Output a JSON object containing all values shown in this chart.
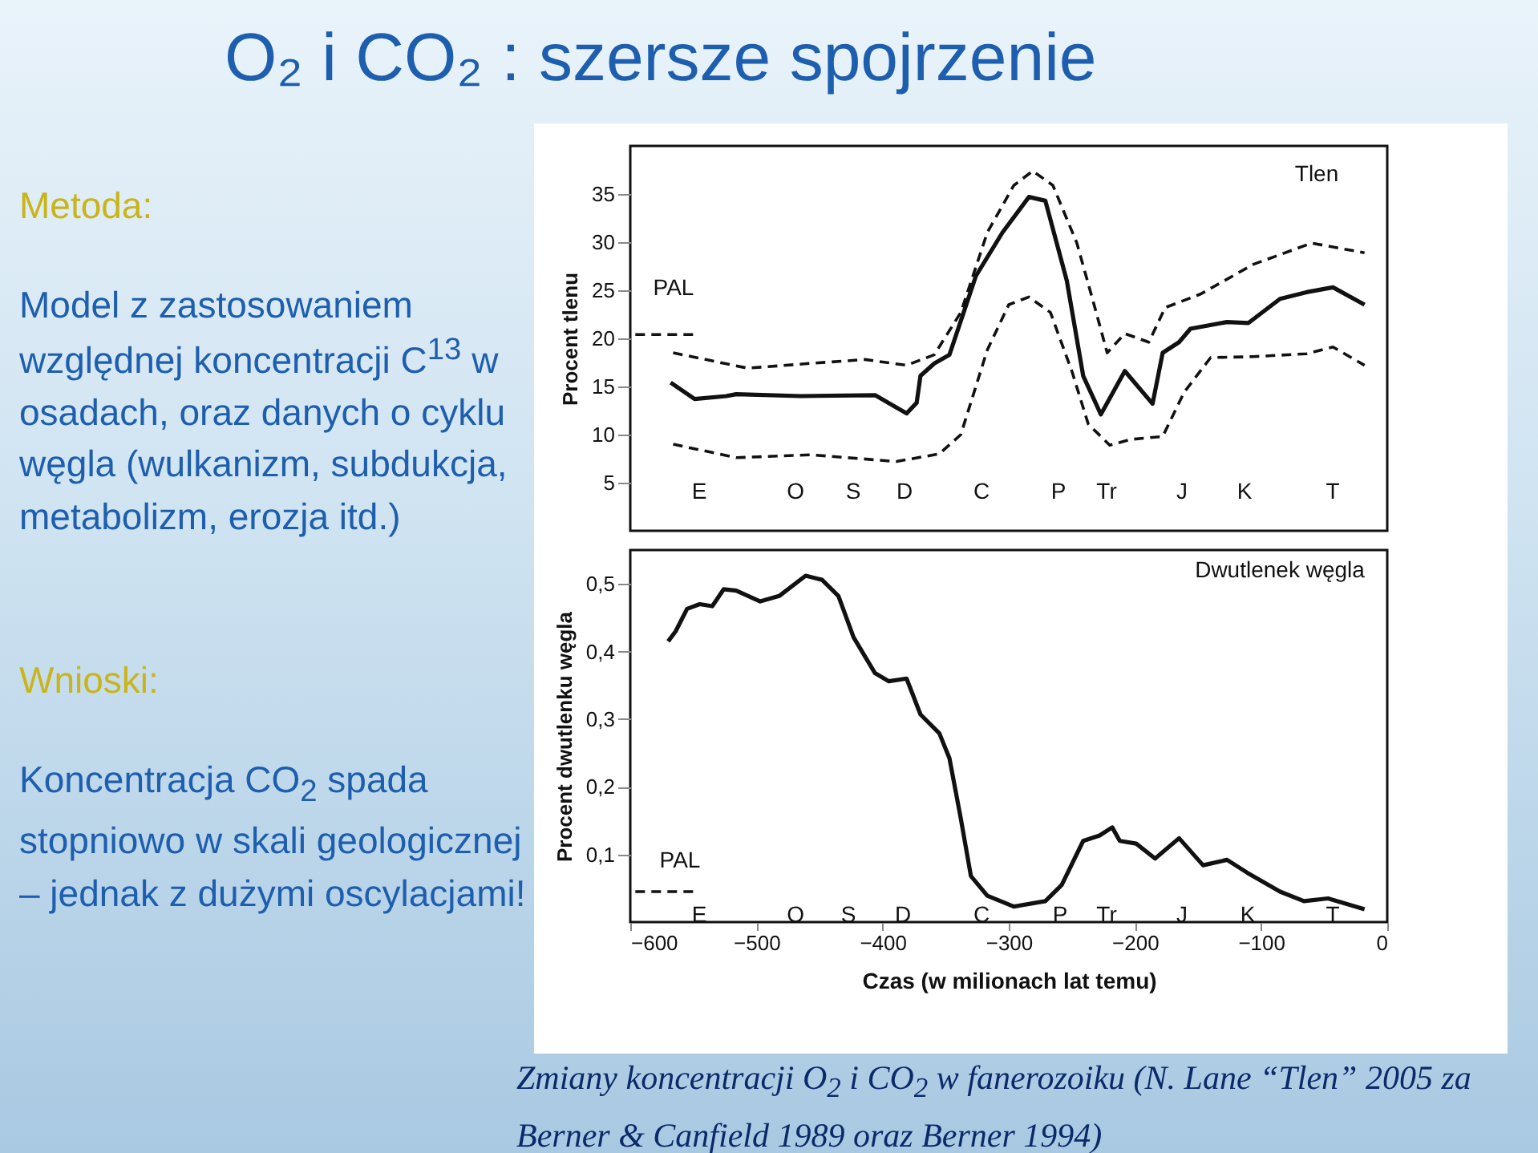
{
  "chart_data": [
    {
      "type": "line",
      "title": "O₂ i CO₂ : szersze spojrzenie",
      "ylabel": "Procent tlenu",
      "xlim": [
        -600,
        0
      ],
      "ylim": [
        0,
        40
      ],
      "yticks": [
        5,
        10,
        15,
        20,
        25,
        30,
        35
      ],
      "tick_labels": "y",
      "grid": false,
      "series": [
        {
          "color": "#111111",
          "line_style": "solid",
          "x": [
            -568,
            -549,
            -524,
            -516,
            -465,
            -406,
            -381,
            -373,
            -370,
            -359,
            -347,
            -326,
            -305,
            -284,
            -271,
            -254,
            -241,
            -227,
            -208,
            -186,
            -178,
            -165,
            -156,
            -127,
            -110,
            -85,
            -64,
            -43,
            -18
          ],
          "values": [
            15.4,
            13.7,
            14.0,
            14.2,
            14.0,
            14.1,
            12.2,
            13.3,
            16.1,
            17.4,
            18.3,
            26.5,
            31.0,
            34.7,
            34.3,
            26.0,
            16.1,
            12.1,
            16.6,
            13.2,
            18.5,
            19.6,
            21.0,
            21.7,
            21.6,
            24.1,
            24.8,
            25.3,
            23.5
          ]
        },
        {
          "color": "#111111",
          "line_style": "dashed",
          "x": [
            -566,
            -507,
            -457,
            -414,
            -381,
            -359,
            -338,
            -317,
            -296,
            -281,
            -265,
            -246,
            -233,
            -222,
            -208,
            -189,
            -176,
            -148,
            -106,
            -60,
            -18
          ],
          "values": [
            18.5,
            16.9,
            17.4,
            17.8,
            17.2,
            18.3,
            22.7,
            31.0,
            35.9,
            37.4,
            35.9,
            29.9,
            23.8,
            18.5,
            20.5,
            19.6,
            23.2,
            24.6,
            27.7,
            29.9,
            28.9
          ]
        },
        {
          "color": "#111111",
          "line_style": "dashed",
          "x": [
            -566,
            -516,
            -457,
            -389,
            -355,
            -338,
            -317,
            -300,
            -284,
            -267,
            -250,
            -237,
            -220,
            -203,
            -178,
            -161,
            -140,
            -106,
            -64,
            -43,
            -18
          ],
          "values": [
            9.0,
            7.6,
            7.9,
            7.2,
            8.0,
            10.0,
            18.8,
            23.5,
            24.3,
            22.7,
            16.6,
            11.1,
            8.9,
            9.5,
            9.8,
            14.4,
            18.0,
            18.1,
            18.4,
            19.1,
            17.2
          ]
        },
        {
          "color": "#111111",
          "line_style": "dashed",
          "x": [
            -596,
            -549
          ],
          "values": [
            20.4,
            20.4
          ]
        }
      ],
      "annotations": [
        "Metoda:",
        "Model z zastosowaniem względnej koncentracji C$^{13}$ w osadach, oraz danych o cyklu węgla (wulkanizm, subdukcja, metabolizm, erozja itd.)",
        "Wnioski:",
        "Koncentracja CO$_{2}$ spada stopniowo w skali geologicznej – jednak z dużymi oscylacjami!",
        "Tlen",
        "PAL",
        "E",
        "O",
        "S",
        "D",
        "C",
        "P",
        "Tr",
        "J",
        "K",
        "T"
      ]
    },
    {
      "type": "line",
      "ylabel": "Procent dwutlenku węgla",
      "xlabel": "Czas (w milionach lat temu)",
      "xlim": [
        -600,
        0
      ],
      "ylim": [
        0,
        0.55
      ],
      "xticks": [
        {
          "value": -600,
          "label": "−600"
        },
        {
          "value": -500,
          "label": "−500"
        },
        {
          "value": -400,
          "label": "−400"
        },
        {
          "value": -300,
          "label": "−300"
        },
        {
          "value": -200,
          "label": "−200"
        },
        {
          "value": -100,
          "label": "−100"
        },
        0
      ],
      "yticks": [
        {
          "value": 0.1,
          "label": "0,1"
        },
        {
          "value": 0.2,
          "label": "0,2"
        },
        {
          "value": 0.3,
          "label": "0,3"
        },
        {
          "value": 0.4,
          "label": "0,4"
        },
        {
          "value": 0.5,
          "label": "0,5"
        }
      ],
      "grid": false,
      "series": [
        {
          "color": "#111111",
          "line_style": "solid",
          "x": [
            -570,
            -564,
            -555,
            -545,
            -535,
            -526,
            -516,
            -497,
            -482,
            -461,
            -448,
            -435,
            -423,
            -406,
            -395,
            -381,
            -370,
            -355,
            -347,
            -338,
            -330,
            -317,
            -296,
            -271,
            -258,
            -241,
            -228,
            -218,
            -212,
            -199,
            -184,
            -165,
            -146,
            -127,
            -111,
            -85,
            -66,
            -47,
            -18
          ],
          "values": [
            0.415,
            0.43,
            0.463,
            0.47,
            0.467,
            0.492,
            0.49,
            0.474,
            0.482,
            0.512,
            0.506,
            0.482,
            0.421,
            0.368,
            0.356,
            0.36,
            0.307,
            0.279,
            0.242,
            0.153,
            0.068,
            0.039,
            0.023,
            0.031,
            0.055,
            0.12,
            0.128,
            0.14,
            0.12,
            0.116,
            0.094,
            0.124,
            0.084,
            0.092,
            0.073,
            0.045,
            0.031,
            0.035,
            0.019
          ]
        },
        {
          "color": "#111111",
          "line_style": "dashed",
          "x": [
            -596,
            -549
          ],
          "values": [
            0.045,
            0.045
          ]
        }
      ],
      "annotations": [
        "Zmiany koncentracji O$_{2}$ i CO$_{2}$ w fanerozoiku (N. Lane “Tlen” 2005 za Berner & Canfield 1989 oraz Berner 1994)",
        "Dwutlenek węgla",
        "PAL",
        "E",
        "O",
        "S",
        "D",
        "C",
        "P",
        "Tr",
        "J",
        "K",
        "T"
      ]
    }
  ]
}
